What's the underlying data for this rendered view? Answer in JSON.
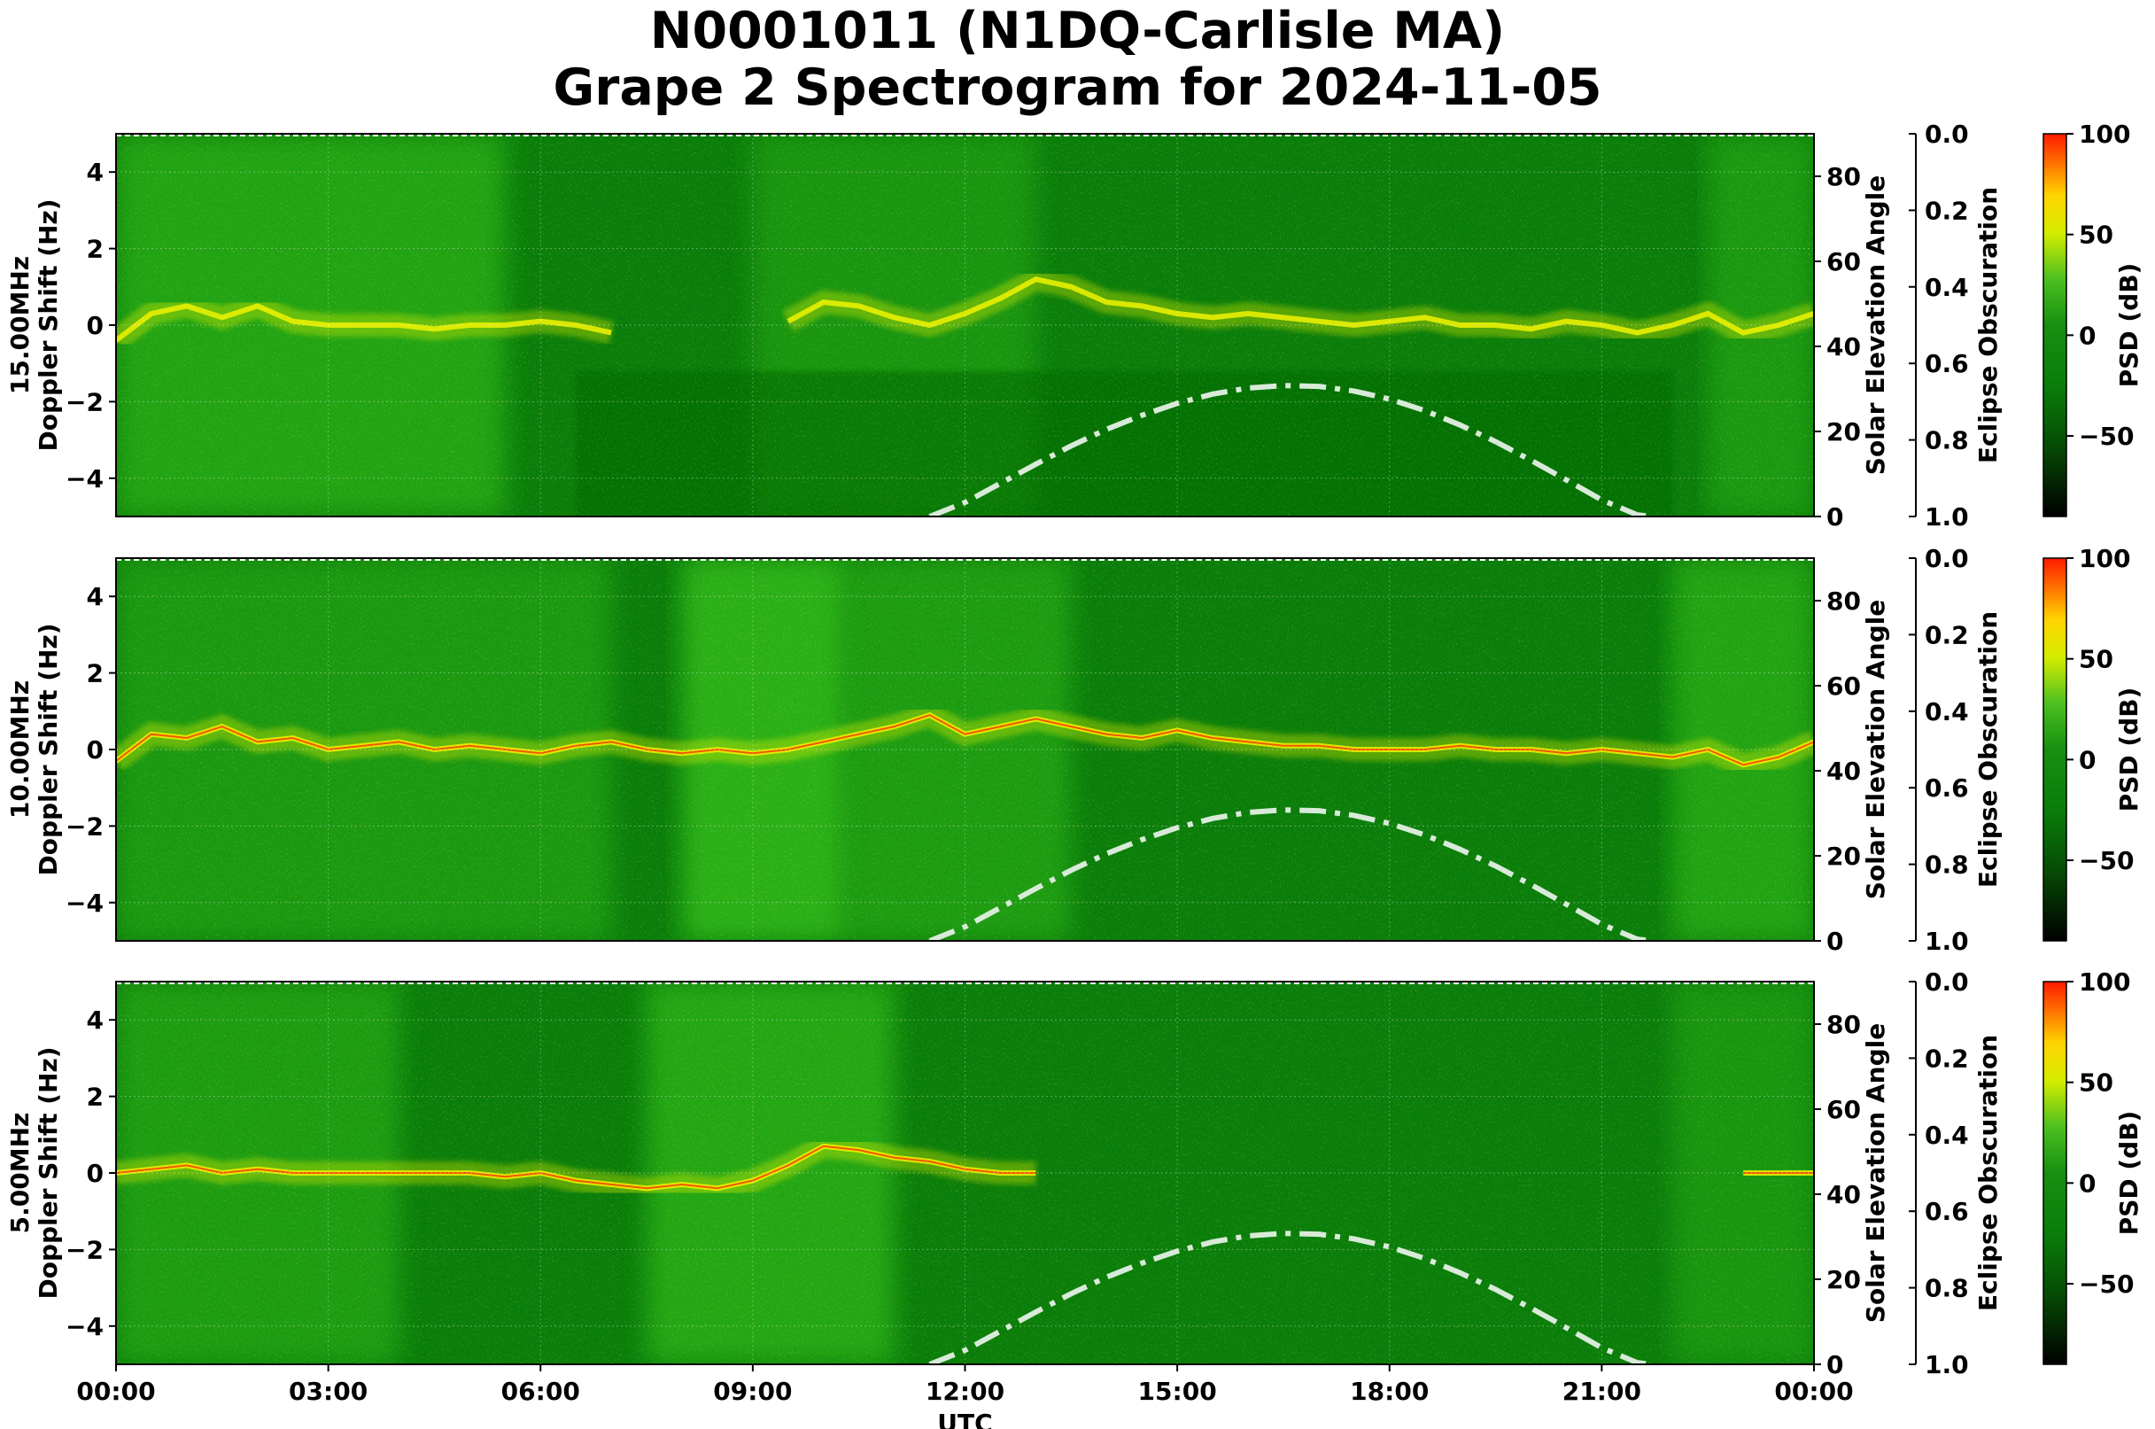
{
  "title": {
    "line1": "N0001011 (N1DQ-Carlisle MA)",
    "line2": "Grape 2 Spectrogram for 2024-11-05"
  },
  "colors": {
    "cmap_dark": "#000000",
    "cmap_green": "#0a7d0a",
    "cmap_bright_green": "#34c21c",
    "cmap_yellow": "#e8f000",
    "cmap_red": "#ff1a00",
    "solar_curve": "#d8ead8"
  },
  "chart_data": [
    {
      "type": "heatmap",
      "name": "15.00MHz",
      "ylabel_line1": "15.00MHz",
      "ylabel_line2": "Doppler Shift (Hz)",
      "xlabel": "",
      "ylim": [
        -5,
        5
      ],
      "yticks": [
        "4",
        "2",
        "0",
        "−2",
        "−4"
      ],
      "ytick_values": [
        4,
        2,
        0,
        -2,
        -4
      ],
      "right_axis": {
        "label": "Solar Elevation Angle",
        "ylim": [
          0,
          90
        ],
        "ticks": [
          "0",
          "20",
          "40",
          "60",
          "80"
        ],
        "tick_values": [
          0,
          20,
          40,
          60,
          80
        ]
      },
      "eclipse_axis": {
        "label": "Eclipse Obscuration",
        "ylim": [
          1.0,
          0.0
        ],
        "ticks": [
          "0.0",
          "0.2",
          "0.4",
          "0.6",
          "0.8",
          "1.0"
        ],
        "tick_values": [
          0.0,
          0.2,
          0.4,
          0.6,
          0.8,
          1.0
        ]
      },
      "colorbar": {
        "label": "PSD (dB)",
        "range": [
          -90,
          100
        ],
        "ticks": [
          "100",
          "50",
          "0",
          "−50"
        ],
        "tick_values": [
          100,
          50,
          0,
          -50
        ]
      },
      "doppler_trace": {
        "time_h": [
          0,
          0.5,
          1,
          1.5,
          2,
          2.5,
          3,
          3.5,
          4,
          4.5,
          5,
          5.5,
          6,
          6.5,
          7,
          7.5,
          8,
          8.5,
          9,
          9.5,
          10,
          10.5,
          11,
          11.5,
          12,
          12.5,
          13,
          13.5,
          14,
          14.5,
          15,
          15.5,
          16,
          16.5,
          17,
          17.5,
          18,
          18.5,
          19,
          19.5,
          20,
          20.5,
          21,
          21.5,
          22,
          22.5,
          23,
          23.5,
          24
        ],
        "doppler_hz": [
          -0.4,
          0.3,
          0.5,
          0.2,
          0.5,
          0.1,
          0.0,
          0.0,
          0.0,
          -0.1,
          0.0,
          0.0,
          0.1,
          0.0,
          -0.2,
          null,
          null,
          null,
          null,
          0.1,
          0.6,
          0.5,
          0.2,
          0.0,
          0.3,
          0.7,
          1.2,
          1.0,
          0.6,
          0.5,
          0.3,
          0.2,
          0.3,
          0.2,
          0.1,
          0.0,
          0.1,
          0.2,
          0.0,
          0.0,
          -0.1,
          0.1,
          0.0,
          -0.2,
          0.0,
          0.3,
          -0.2,
          0.0,
          0.3
        ]
      },
      "solar_elevation": {
        "time_h": [
          11.5,
          12,
          12.5,
          13,
          13.5,
          14,
          14.5,
          15,
          15.5,
          16,
          16.5,
          17,
          17.5,
          18,
          18.5,
          19,
          19.5,
          20,
          20.5,
          21,
          21.5,
          21.7
        ],
        "deg": [
          0,
          3.3,
          7.8,
          12.3,
          16.6,
          20.5,
          23.8,
          26.6,
          28.8,
          30.2,
          30.8,
          30.6,
          29.5,
          27.6,
          24.9,
          21.5,
          17.6,
          13.2,
          8.6,
          3.9,
          0.4,
          0
        ]
      }
    },
    {
      "type": "heatmap",
      "name": "10.00MHz",
      "ylabel_line1": "10.00MHz",
      "ylabel_line2": "Doppler Shift (Hz)",
      "xlabel": "",
      "ylim": [
        -5,
        5
      ],
      "yticks": [
        "4",
        "2",
        "0",
        "−2",
        "−4"
      ],
      "ytick_values": [
        4,
        2,
        0,
        -2,
        -4
      ],
      "right_axis": {
        "label": "Solar Elevation Angle",
        "ylim": [
          0,
          90
        ],
        "ticks": [
          "0",
          "20",
          "40",
          "60",
          "80"
        ],
        "tick_values": [
          0,
          20,
          40,
          60,
          80
        ]
      },
      "eclipse_axis": {
        "label": "Eclipse Obscuration",
        "ylim": [
          1.0,
          0.0
        ],
        "ticks": [
          "0.0",
          "0.2",
          "0.4",
          "0.6",
          "0.8",
          "1.0"
        ],
        "tick_values": [
          0.0,
          0.2,
          0.4,
          0.6,
          0.8,
          1.0
        ]
      },
      "colorbar": {
        "label": "PSD (dB)",
        "range": [
          -90,
          100
        ],
        "ticks": [
          "100",
          "50",
          "0",
          "−50"
        ],
        "tick_values": [
          100,
          50,
          0,
          -50
        ]
      },
      "doppler_trace": {
        "time_h": [
          0,
          0.5,
          1,
          1.5,
          2,
          2.5,
          3,
          3.5,
          4,
          4.5,
          5,
          5.5,
          6,
          6.5,
          7,
          7.5,
          8,
          8.5,
          9,
          9.5,
          10,
          10.5,
          11,
          11.5,
          12,
          12.5,
          13,
          13.5,
          14,
          14.5,
          15,
          15.5,
          16,
          16.5,
          17,
          17.5,
          18,
          18.5,
          19,
          19.5,
          20,
          20.5,
          21,
          21.5,
          22,
          22.5,
          23,
          23.5,
          24
        ],
        "doppler_hz": [
          -0.3,
          0.4,
          0.3,
          0.6,
          0.2,
          0.3,
          0.0,
          0.1,
          0.2,
          0.0,
          0.1,
          0.0,
          -0.1,
          0.1,
          0.2,
          0.0,
          -0.1,
          0.0,
          -0.1,
          0.0,
          0.2,
          0.4,
          0.6,
          0.9,
          0.4,
          0.6,
          0.8,
          0.6,
          0.4,
          0.3,
          0.5,
          0.3,
          0.2,
          0.1,
          0.1,
          0.0,
          0.0,
          0.0,
          0.1,
          0.0,
          0.0,
          -0.1,
          0.0,
          -0.1,
          -0.2,
          0.0,
          -0.4,
          -0.2,
          0.2
        ]
      },
      "solar_elevation": {
        "time_h": [
          11.5,
          12,
          12.5,
          13,
          13.5,
          14,
          14.5,
          15,
          15.5,
          16,
          16.5,
          17,
          17.5,
          18,
          18.5,
          19,
          19.5,
          20,
          20.5,
          21,
          21.5,
          21.7
        ],
        "deg": [
          0,
          3.3,
          7.8,
          12.3,
          16.6,
          20.5,
          23.8,
          26.6,
          28.8,
          30.2,
          30.8,
          30.6,
          29.5,
          27.6,
          24.9,
          21.5,
          17.6,
          13.2,
          8.6,
          3.9,
          0.4,
          0
        ]
      }
    },
    {
      "type": "heatmap",
      "name": "5.00MHz",
      "ylabel_line1": "5.00MHz",
      "ylabel_line2": "Doppler Shift (Hz)",
      "xlabel": "UTC",
      "ylim": [
        -5,
        5
      ],
      "yticks": [
        "4",
        "2",
        "0",
        "−2",
        "−4"
      ],
      "ytick_values": [
        4,
        2,
        0,
        -2,
        -4
      ],
      "xticks": [
        "00:00",
        "03:00",
        "06:00",
        "09:00",
        "12:00",
        "15:00",
        "18:00",
        "21:00",
        "00:00"
      ],
      "xtick_values_h": [
        0,
        3,
        6,
        9,
        12,
        15,
        18,
        21,
        24
      ],
      "right_axis": {
        "label": "Solar Elevation Angle",
        "ylim": [
          0,
          90
        ],
        "ticks": [
          "0",
          "20",
          "40",
          "60",
          "80"
        ],
        "tick_values": [
          0,
          20,
          40,
          60,
          80
        ]
      },
      "eclipse_axis": {
        "label": "Eclipse Obscuration",
        "ylim": [
          1.0,
          0.0
        ],
        "ticks": [
          "0.0",
          "0.2",
          "0.4",
          "0.6",
          "0.8",
          "1.0"
        ],
        "tick_values": [
          0.0,
          0.2,
          0.4,
          0.6,
          0.8,
          1.0
        ]
      },
      "colorbar": {
        "label": "PSD (dB)",
        "range": [
          -90,
          100
        ],
        "ticks": [
          "100",
          "50",
          "0",
          "−50"
        ],
        "tick_values": [
          100,
          50,
          0,
          -50
        ]
      },
      "doppler_trace": {
        "time_h": [
          0,
          0.5,
          1,
          1.5,
          2,
          2.5,
          3,
          3.5,
          4,
          4.5,
          5,
          5.5,
          6,
          6.5,
          7,
          7.5,
          8,
          8.5,
          9,
          9.5,
          10,
          10.5,
          11,
          11.5,
          12,
          12.5,
          13,
          13.5,
          14,
          14.5,
          15,
          15.5,
          16,
          16.5,
          17,
          17.5,
          18,
          18.5,
          19,
          19.5,
          20,
          20.5,
          21,
          21.5,
          22,
          22.5,
          23,
          23.5,
          24
        ],
        "doppler_hz": [
          0.0,
          0.1,
          0.2,
          0.0,
          0.1,
          0.0,
          0.0,
          0.0,
          0.0,
          0.0,
          0.0,
          -0.1,
          0.0,
          -0.2,
          -0.3,
          -0.4,
          -0.3,
          -0.4,
          -0.2,
          0.2,
          0.7,
          0.6,
          0.4,
          0.3,
          0.1,
          0.0,
          0.0,
          null,
          null,
          null,
          null,
          null,
          null,
          null,
          null,
          null,
          null,
          null,
          null,
          null,
          null,
          null,
          null,
          null,
          null,
          null,
          0.0,
          0.0,
          0.0
        ]
      },
      "solar_elevation": {
        "time_h": [
          11.5,
          12,
          12.5,
          13,
          13.5,
          14,
          14.5,
          15,
          15.5,
          16,
          16.5,
          17,
          17.5,
          18,
          18.5,
          19,
          19.5,
          20,
          20.5,
          21,
          21.5,
          21.7
        ],
        "deg": [
          0,
          3.3,
          7.8,
          12.3,
          16.6,
          20.5,
          23.8,
          26.6,
          28.8,
          30.2,
          30.8,
          30.6,
          29.5,
          27.6,
          24.9,
          21.5,
          17.6,
          13.2,
          8.6,
          3.9,
          0.4,
          0
        ]
      }
    }
  ]
}
